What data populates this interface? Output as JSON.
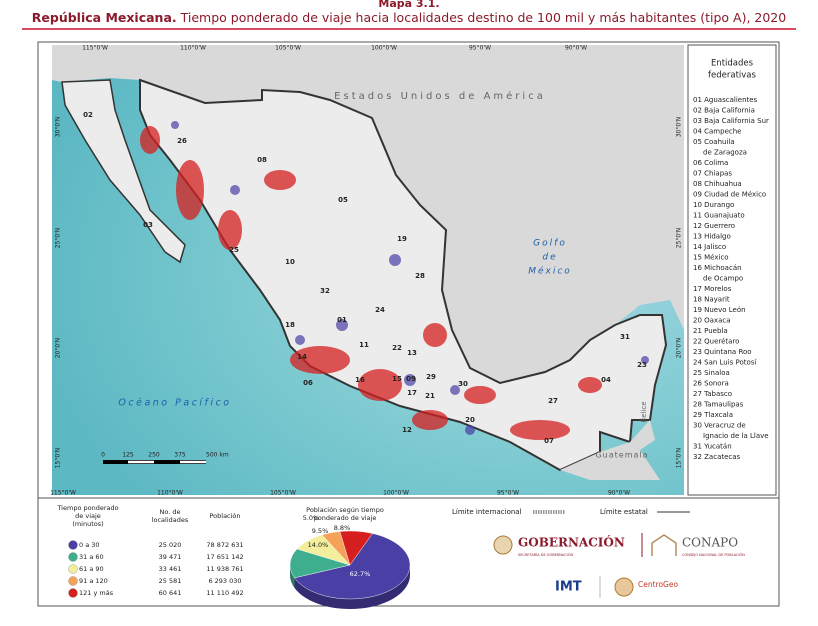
{
  "header": {
    "label": "Mapa 3.1.",
    "title_bold": "República Mexicana.",
    "title": "Tiempo ponderado de viaje hacia localidades destino de 100 mil y más habitantes (tipo A), 2020"
  },
  "map": {
    "places": {
      "usa": "Estados Unidos de América",
      "gulf": [
        "Golfo",
        "de",
        "México"
      ],
      "ocean": "Océano Pacífico",
      "belize": "Belice",
      "guatemala": "Guatemala"
    },
    "lon_top": [
      "115°0'W",
      "110°0'W",
      "105°0'W",
      "100°0'W",
      "95°0'W",
      "90°0'W"
    ],
    "lon_bottom": [
      "115°0'W",
      "110°0'W",
      "105°0'W",
      "100°0'W",
      "95°0'W",
      "90°0'W"
    ],
    "lat": [
      "30°0'N",
      "25°0'N",
      "20°0'N",
      "15°0'N"
    ],
    "scale": [
      "0",
      "125",
      "250",
      "375",
      "500 km"
    ],
    "states": [
      "02",
      "26",
      "08",
      "05",
      "03",
      "25",
      "10",
      "19",
      "28",
      "32",
      "24",
      "01",
      "18",
      "11",
      "22",
      "13",
      "14",
      "06",
      "16",
      "15",
      "09",
      "29",
      "17",
      "21",
      "30",
      "12",
      "20",
      "27",
      "04",
      "23",
      "31",
      "07"
    ]
  },
  "legend": {
    "title": [
      "Entidades",
      "federativas"
    ],
    "entries": [
      "01 Aguascalientes",
      "02 Baja California",
      "03 Baja California Sur",
      "04 Campeche",
      "05 Coahuila",
      "de Zaragoza",
      "06 Colima",
      "07 Chiapas",
      "08 Chihuahua",
      "09 Ciudad de México",
      "10 Durango",
      "11 Guanajuato",
      "12 Guerrero",
      "13 Hidalgo",
      "14 Jalisco",
      "15 México",
      "16 Michoacán",
      "de Ocampo",
      "17 Morelos",
      "18 Nayarit",
      "19 Nuevo León",
      "20 Oaxaca",
      "21 Puebla",
      "22 Querétaro",
      "23 Quintana Roo",
      "24 San Luis Potosí",
      "25 Sinaloa",
      "26 Sonora",
      "27 Tabasco",
      "28 Tamaulipas",
      "29 Tlaxcala",
      "30 Veracruz de",
      "Ignacio de la Llave",
      "31 Yucatán",
      "32 Zacatecas"
    ]
  },
  "table": {
    "headers": [
      [
        "Tiempo ponderado",
        "de viaje",
        "(minutos)"
      ],
      [
        "No. de",
        "localidades"
      ],
      [
        "Población"
      ]
    ],
    "rows": [
      [
        "0 a 30",
        "25 020",
        "78 872 631"
      ],
      [
        "31 a 60",
        "39 471",
        "17 651 142"
      ],
      [
        "61 a 90",
        "33 461",
        "11 938 761"
      ],
      [
        "91 a 120",
        "25 581",
        "6 293 030"
      ],
      [
        "121 y más",
        "60 641",
        "11 110 492"
      ]
    ],
    "colors": [
      "#4a3fa5",
      "#3fae8e",
      "#f2ee9c",
      "#f4a25a",
      "#d61f1f"
    ]
  },
  "pie": {
    "type": "pie",
    "title": [
      "Población según tiempo",
      "ponderado de viaje"
    ],
    "values": [
      62.7,
      14.0,
      9.5,
      5.0,
      8.8
    ],
    "value_labels": [
      "62.7%",
      "14.0%",
      "9.5%",
      "5.0%",
      "8.8%"
    ],
    "colors": [
      "#4a3fa5",
      "#3fae8e",
      "#f2ee9c",
      "#f4a25a",
      "#d61f1f"
    ]
  },
  "boundaries": {
    "international": "Límite internacional",
    "state": "Límite estatal"
  },
  "logos": {
    "gob": "GOBERNACIÓN",
    "gob_sub": "SECRETARÍA DE GOBERNACIÓN",
    "conapo": "CONAPO",
    "conapo_sub": "CONSEJO NACIONAL DE POBLACIÓN",
    "imt": "IMT",
    "centrogeo": "CentroGeo"
  }
}
